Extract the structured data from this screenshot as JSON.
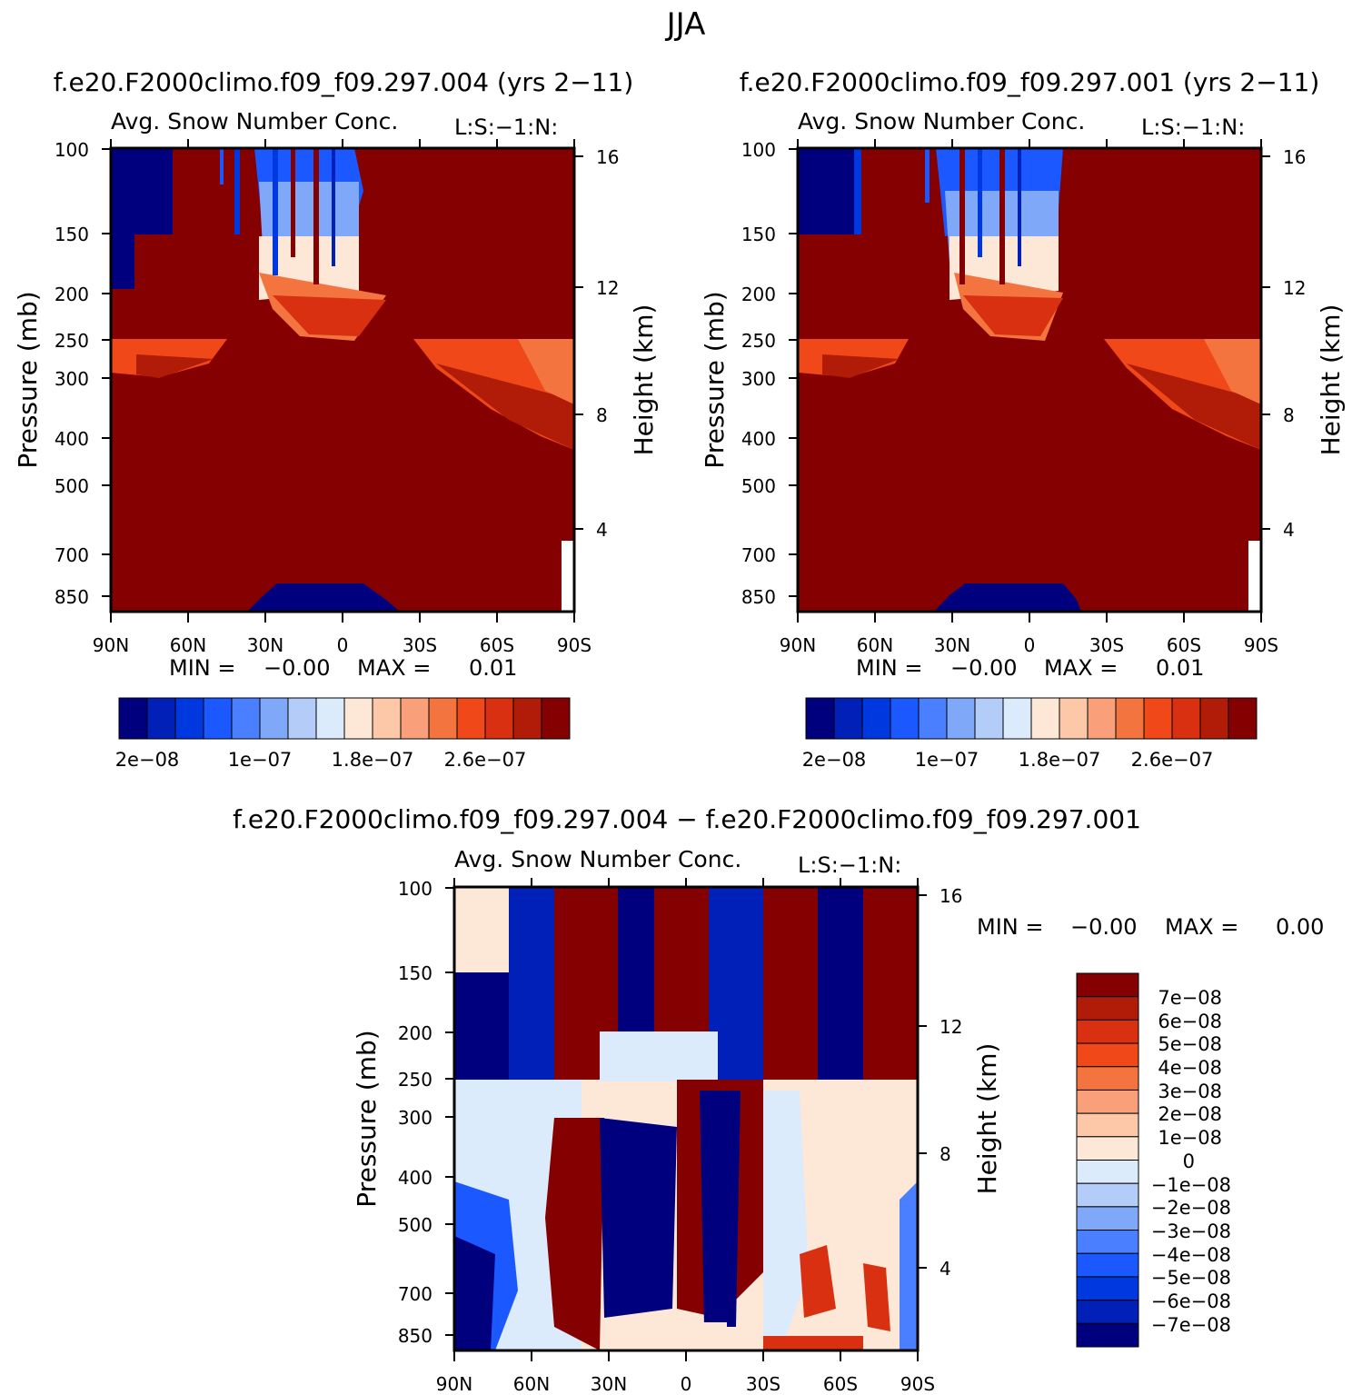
{
  "page_title": "JJA",
  "chart_data": [
    {
      "type": "heatmap",
      "case_title": "f.e20.F2000climo.f09_f09.297.004 (yrs 2-11)",
      "variable_title": "Avg. Snow Number Conc.",
      "level_tag": "L:S:-1:N:",
      "xlabel": "",
      "ylabel": "Pressure (mb)",
      "ylabel_right": "Height (km)",
      "x_ticks": [
        "90N",
        "60N",
        "30N",
        "0",
        "30S",
        "60S",
        "90S"
      ],
      "y_ticks": [
        "100",
        "150",
        "200",
        "250",
        "300",
        "400",
        "500",
        "700",
        "850"
      ],
      "y_ticks_right": [
        "16",
        "12",
        "8",
        "4"
      ],
      "stats": {
        "min_label": "MIN =",
        "min": "-0.00",
        "max_label": "MAX =",
        "max": "0.01"
      },
      "colorbar": {
        "orientation": "horizontal",
        "labels": [
          "2e-08",
          "1e-07",
          "1.8e-07",
          "2.6e-07"
        ],
        "colors": [
          "#00007f",
          "#0020b8",
          "#0038e0",
          "#1c58ff",
          "#4a80ff",
          "#80a8f8",
          "#b4ccf8",
          "#dcebfb",
          "#fde8d8",
          "#fcc8a8",
          "#f9a07a",
          "#f4743f",
          "#f04818",
          "#d83010",
          "#b01c08",
          "#850000"
        ]
      }
    },
    {
      "type": "heatmap",
      "case_title": "f.e20.F2000climo.f09_f09.297.001 (yrs 2-11)",
      "variable_title": "Avg. Snow Number Conc.",
      "level_tag": "L:S:-1:N:",
      "xlabel": "",
      "ylabel": "Pressure (mb)",
      "ylabel_right": "Height (km)",
      "x_ticks": [
        "90N",
        "60N",
        "30N",
        "0",
        "30S",
        "60S",
        "90S"
      ],
      "y_ticks": [
        "100",
        "150",
        "200",
        "250",
        "300",
        "400",
        "500",
        "700",
        "850"
      ],
      "y_ticks_right": [
        "16",
        "12",
        "8",
        "4"
      ],
      "stats": {
        "min_label": "MIN =",
        "min": "-0.00",
        "max_label": "MAX =",
        "max": "0.01"
      },
      "colorbar": {
        "orientation": "horizontal",
        "labels": [
          "2e-08",
          "1e-07",
          "1.8e-07",
          "2.6e-07"
        ],
        "colors": [
          "#00007f",
          "#0020b8",
          "#0038e0",
          "#1c58ff",
          "#4a80ff",
          "#80a8f8",
          "#b4ccf8",
          "#dcebfb",
          "#fde8d8",
          "#fcc8a8",
          "#f9a07a",
          "#f4743f",
          "#f04818",
          "#d83010",
          "#b01c08",
          "#850000"
        ]
      }
    },
    {
      "type": "heatmap",
      "case_title": "f.e20.F2000climo.f09_f09.297.004 - f.e20.F2000climo.f09_f09.297.001",
      "variable_title": "Avg. Snow Number Conc.",
      "level_tag": "L:S:-1:N:",
      "xlabel": "",
      "ylabel": "Pressure (mb)",
      "ylabel_right": "Height (km)",
      "x_ticks": [
        "90N",
        "60N",
        "30N",
        "0",
        "30S",
        "60S",
        "90S"
      ],
      "y_ticks": [
        "100",
        "150",
        "200",
        "250",
        "300",
        "400",
        "500",
        "700",
        "850"
      ],
      "y_ticks_right": [
        "16",
        "12",
        "8",
        "4"
      ],
      "stats": {
        "min_label": "MIN =",
        "min": "-0.00",
        "max_label": "MAX =",
        "max": "0.00"
      },
      "colorbar": {
        "orientation": "vertical",
        "labels": [
          "7e-08",
          "6e-08",
          "5e-08",
          "4e-08",
          "3e-08",
          "2e-08",
          "1e-08",
          "0",
          "-1e-08",
          "-2e-08",
          "-3e-08",
          "-4e-08",
          "-5e-08",
          "-6e-08",
          "-7e-08"
        ],
        "colors": [
          "#850000",
          "#b01c08",
          "#d83010",
          "#f04818",
          "#f4743f",
          "#f9a07a",
          "#fcc8a8",
          "#fde8d8",
          "#dcebfb",
          "#b4ccf8",
          "#80a8f8",
          "#4a80ff",
          "#1c58ff",
          "#0038e0",
          "#0020b8",
          "#00007f"
        ]
      }
    }
  ]
}
